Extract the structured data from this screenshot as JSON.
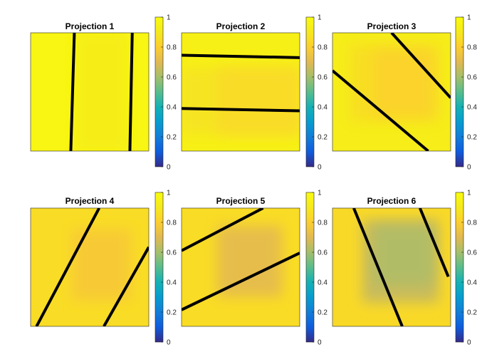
{
  "chart_data": [
    {
      "type": "heatmap",
      "title": "Projection 1",
      "colorbar": {
        "limits": [
          0,
          1
        ],
        "ticks": [
          "0",
          "0.2",
          "0.4",
          "0.6",
          "0.8",
          "1"
        ],
        "colormap": "parula"
      },
      "regions": [
        {
          "x": [
            0,
            1
          ],
          "y": [
            0,
            1
          ],
          "value": 0.97
        },
        {
          "x": [
            0.38,
            0.82
          ],
          "y": [
            0,
            1
          ],
          "value": 0.92
        }
      ],
      "lines": [
        [
          [
            0.34,
            1.0
          ],
          [
            0.37,
            0.0
          ]
        ],
        [
          [
            0.84,
            1.0
          ],
          [
            0.86,
            0.0
          ]
        ]
      ],
      "color_stops": []
    },
    {
      "type": "heatmap",
      "title": "Projection 2",
      "colorbar": {
        "limits": [
          0,
          1
        ],
        "ticks": [
          "0",
          "0.2",
          "0.4",
          "0.6",
          "0.8",
          "1"
        ],
        "colormap": "parula"
      },
      "regions": [
        {
          "x": [
            0,
            1
          ],
          "y": [
            0,
            1
          ],
          "value": 0.94
        },
        {
          "x": [
            0,
            1
          ],
          "y": [
            0.3,
            0.86
          ],
          "value": 0.88
        },
        {
          "x": [
            0.3,
            1
          ],
          "y": [
            0.3,
            0.86
          ],
          "value": 0.85
        }
      ],
      "lines": [
        [
          [
            0.0,
            0.19
          ],
          [
            1.0,
            0.21
          ]
        ],
        [
          [
            0.0,
            0.64
          ],
          [
            1.0,
            0.66
          ]
        ]
      ],
      "color_stops": []
    },
    {
      "type": "heatmap",
      "title": "Projection 3",
      "colorbar": {
        "limits": [
          0,
          1
        ],
        "ticks": [
          "0",
          "0.2",
          "0.4",
          "0.6",
          "0.8",
          "1"
        ],
        "colormap": "parula"
      },
      "regions": [
        {
          "x": [
            0,
            1
          ],
          "y": [
            0,
            1
          ],
          "value": 0.92
        },
        {
          "x": [
            0.15,
            0.9
          ],
          "y": [
            0.1,
            0.75
          ],
          "value": 0.86
        },
        {
          "x": [
            0.35,
            0.85
          ],
          "y": [
            0.15,
            0.7
          ],
          "value": 0.82
        }
      ],
      "lines": [
        [
          [
            0.0,
            0.32
          ],
          [
            0.81,
            1.0
          ]
        ],
        [
          [
            0.5,
            0.0
          ],
          [
            1.0,
            0.55
          ]
        ]
      ],
      "color_stops": []
    },
    {
      "type": "heatmap",
      "title": "Projection 4",
      "colorbar": {
        "limits": [
          0,
          1
        ],
        "ticks": [
          "0",
          "0.2",
          "0.4",
          "0.6",
          "0.8",
          "1"
        ],
        "colormap": "parula"
      },
      "regions": [
        {
          "x": [
            0,
            1
          ],
          "y": [
            0,
            1
          ],
          "value": 0.85
        },
        {
          "x": [
            0.35,
            0.85
          ],
          "y": [
            0.18,
            0.78
          ],
          "value": 0.78
        }
      ],
      "lines": [
        [
          [
            0.05,
            1.0
          ],
          [
            0.58,
            0.0
          ]
        ],
        [
          [
            0.62,
            1.0
          ],
          [
            1.0,
            0.33
          ]
        ]
      ],
      "color_stops": []
    },
    {
      "type": "heatmap",
      "title": "Projection 5",
      "colorbar": {
        "limits": [
          0,
          1
        ],
        "ticks": [
          "0",
          "0.2",
          "0.4",
          "0.6",
          "0.8",
          "1"
        ],
        "colormap": "parula"
      },
      "regions": [
        {
          "x": [
            0,
            1
          ],
          "y": [
            0,
            1
          ],
          "value": 0.85
        },
        {
          "x": [
            0.3,
            0.85
          ],
          "y": [
            0.15,
            0.75
          ],
          "value": 0.72
        }
      ],
      "lines": [
        [
          [
            0.0,
            0.36
          ],
          [
            0.69,
            0.0
          ]
        ],
        [
          [
            0.0,
            0.86
          ],
          [
            1.0,
            0.38
          ]
        ]
      ],
      "color_stops": []
    },
    {
      "type": "heatmap",
      "title": "Projection 6",
      "colorbar": {
        "limits": [
          0,
          1
        ],
        "ticks": [
          "0",
          "0.2",
          "0.4",
          "0.6",
          "0.8",
          "1"
        ],
        "colormap": "parula"
      },
      "regions": [
        {
          "x": [
            0,
            1
          ],
          "y": [
            0,
            1
          ],
          "value": 0.84
        },
        {
          "x": [
            0.25,
            0.9
          ],
          "y": [
            0.1,
            0.8
          ],
          "value": 0.66
        },
        {
          "x": [
            0.35,
            0.85
          ],
          "y": [
            0.15,
            0.65
          ],
          "value": 0.62
        }
      ],
      "lines": [
        [
          [
            0.18,
            0.0
          ],
          [
            0.59,
            1.0
          ]
        ],
        [
          [
            0.74,
            0.0
          ],
          [
            0.98,
            0.58
          ]
        ]
      ],
      "color_stops": []
    }
  ]
}
